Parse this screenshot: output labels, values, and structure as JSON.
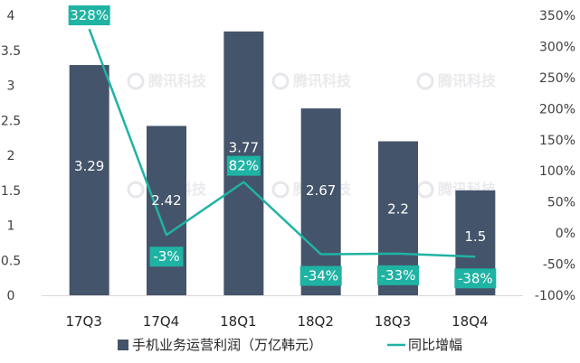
{
  "chart_data": {
    "type": "bar",
    "categories": [
      "17Q3",
      "17Q4",
      "18Q1",
      "18Q2",
      "18Q3",
      "18Q4"
    ],
    "series": [
      {
        "name": "手机业务运营利润（万亿韩元）",
        "type": "bar",
        "axis": "left",
        "values": [
          3.29,
          2.42,
          3.77,
          2.67,
          2.2,
          1.5
        ],
        "labels": [
          "3.29",
          "2.42",
          "3.77",
          "2.67",
          "2.2",
          "1.5"
        ],
        "color": "#44546a"
      },
      {
        "name": "同比增幅",
        "type": "line",
        "axis": "right",
        "values": [
          328,
          -3,
          82,
          -34,
          -33,
          -38
        ],
        "labels": [
          "328%",
          "-3%",
          "82%",
          "-34%",
          "-33%",
          "-38%"
        ],
        "color": "#1fb3a3"
      }
    ],
    "y_left": {
      "range": [
        0,
        4
      ],
      "ticks": [
        0,
        0.5,
        1,
        1.5,
        2,
        2.5,
        3,
        3.5,
        4
      ],
      "tick_labels": [
        "0",
        "0.5",
        "1",
        "1.5",
        "2",
        "2.5",
        "3",
        "3.5",
        "4"
      ]
    },
    "y_right": {
      "range": [
        -100,
        350
      ],
      "ticks": [
        -100,
        -50,
        0,
        50,
        100,
        150,
        200,
        250,
        300,
        350
      ],
      "tick_labels": [
        "-100%",
        "-50%",
        "0%",
        "50%",
        "100%",
        "150%",
        "200%",
        "250%",
        "300%",
        "350%"
      ]
    },
    "grid": false,
    "legend": "bottom",
    "title": "",
    "xlabel": "",
    "ylabel": ""
  },
  "watermark": "腾讯科技",
  "colors": {
    "bar": "#44546a",
    "line": "#1fb3a3",
    "label_box": "#1fb3a3",
    "text": "#404040"
  }
}
